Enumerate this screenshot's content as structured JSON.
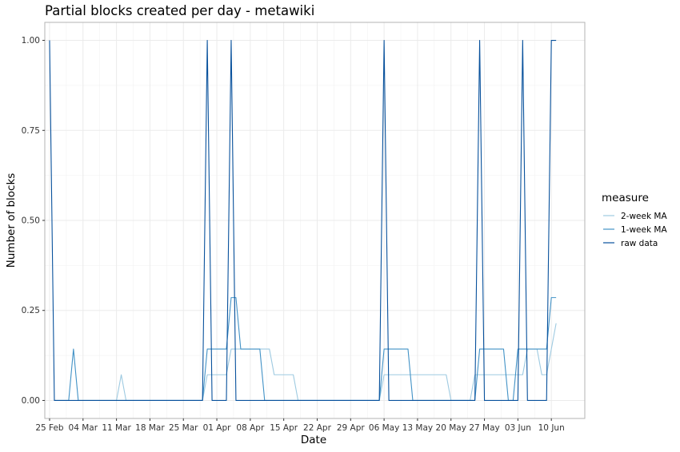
{
  "chart_data": {
    "type": "line",
    "title": "Partial blocks created per day - metawiki",
    "xlabel": "Date",
    "ylabel": "Number of blocks",
    "x_start": "2018-02-25",
    "xlim": [
      "2018-02-24",
      "2018-06-17"
    ],
    "ylim": [
      -0.05,
      1.05
    ],
    "x_ticks": [
      {
        "date": "2018-02-25",
        "label": "25 Feb"
      },
      {
        "date": "2018-03-04",
        "label": "04 Mar"
      },
      {
        "date": "2018-03-11",
        "label": "11 Mar"
      },
      {
        "date": "2018-03-18",
        "label": "18 Mar"
      },
      {
        "date": "2018-03-25",
        "label": "25 Mar"
      },
      {
        "date": "2018-04-01",
        "label": "01 Apr"
      },
      {
        "date": "2018-04-08",
        "label": "08 Apr"
      },
      {
        "date": "2018-04-15",
        "label": "15 Apr"
      },
      {
        "date": "2018-04-22",
        "label": "22 Apr"
      },
      {
        "date": "2018-04-29",
        "label": "29 Apr"
      },
      {
        "date": "2018-05-06",
        "label": "06 May"
      },
      {
        "date": "2018-05-13",
        "label": "13 May"
      },
      {
        "date": "2018-05-20",
        "label": "20 May"
      },
      {
        "date": "2018-05-27",
        "label": "27 May"
      },
      {
        "date": "2018-06-03",
        "label": "03 Jun"
      },
      {
        "date": "2018-06-10",
        "label": "10 Jun"
      }
    ],
    "y_ticks": [
      {
        "value": 0,
        "label": "0.00"
      },
      {
        "value": 0.25,
        "label": "0.25"
      },
      {
        "value": 0.5,
        "label": "0.50"
      },
      {
        "value": 0.75,
        "label": "0.75"
      },
      {
        "value": 1,
        "label": "1.00"
      }
    ],
    "grid": true,
    "legend": {
      "title": "measure",
      "position": "right"
    },
    "series": [
      {
        "name": "2-week MA",
        "color": "#9ecae1",
        "points": [
          [
            "2018-03-11",
            0
          ],
          [
            "2018-03-12",
            0.0714
          ],
          [
            "2018-03-13",
            0
          ],
          [
            "2018-03-29",
            0
          ],
          [
            "2018-03-30",
            0.0714
          ],
          [
            "2018-04-03",
            0.0714
          ],
          [
            "2018-04-04",
            0.1429
          ],
          [
            "2018-04-12",
            0.1429
          ],
          [
            "2018-04-13",
            0.0714
          ],
          [
            "2018-04-17",
            0.0714
          ],
          [
            "2018-04-18",
            0
          ],
          [
            "2018-05-05",
            0
          ],
          [
            "2018-05-06",
            0.0714
          ],
          [
            "2018-05-19",
            0.0714
          ],
          [
            "2018-05-20",
            0
          ],
          [
            "2018-05-24",
            0
          ],
          [
            "2018-05-25",
            0.0714
          ],
          [
            "2018-06-04",
            0.0714
          ],
          [
            "2018-06-05",
            0.1429
          ],
          [
            "2018-06-07",
            0.1429
          ],
          [
            "2018-06-08",
            0.0714
          ],
          [
            "2018-06-09",
            0.0714
          ],
          [
            "2018-06-11",
            0.2143
          ]
        ]
      },
      {
        "name": "1-week MA",
        "color": "#4292c6",
        "points": [
          [
            "2018-02-26",
            0
          ],
          [
            "2018-03-01",
            0
          ],
          [
            "2018-03-02",
            0.1429
          ],
          [
            "2018-03-03",
            0
          ],
          [
            "2018-03-29",
            0
          ],
          [
            "2018-03-30",
            0.1429
          ],
          [
            "2018-04-03",
            0.1429
          ],
          [
            "2018-04-04",
            0.2857
          ],
          [
            "2018-04-05",
            0.2857
          ],
          [
            "2018-04-06",
            0.1429
          ],
          [
            "2018-04-10",
            0.1429
          ],
          [
            "2018-04-11",
            0
          ],
          [
            "2018-05-05",
            0
          ],
          [
            "2018-05-06",
            0.1429
          ],
          [
            "2018-05-11",
            0.1429
          ],
          [
            "2018-05-12",
            0
          ],
          [
            "2018-05-25",
            0
          ],
          [
            "2018-05-26",
            0.1429
          ],
          [
            "2018-05-31",
            0.1429
          ],
          [
            "2018-06-01",
            0
          ],
          [
            "2018-06-02",
            0
          ],
          [
            "2018-06-03",
            0.1429
          ],
          [
            "2018-06-08",
            0.1429
          ],
          [
            "2018-06-09",
            0.1429
          ],
          [
            "2018-06-10",
            0.2857
          ],
          [
            "2018-06-11",
            0.2857
          ]
        ]
      },
      {
        "name": "raw data",
        "color": "#08519c",
        "points": [
          [
            "2018-02-25",
            1
          ],
          [
            "2018-02-26",
            0
          ],
          [
            "2018-03-29",
            0
          ],
          [
            "2018-03-30",
            1
          ],
          [
            "2018-03-31",
            0
          ],
          [
            "2018-04-03",
            0
          ],
          [
            "2018-04-04",
            1
          ],
          [
            "2018-04-05",
            0
          ],
          [
            "2018-05-05",
            0
          ],
          [
            "2018-05-06",
            1
          ],
          [
            "2018-05-07",
            0
          ],
          [
            "2018-05-25",
            0
          ],
          [
            "2018-05-26",
            1
          ],
          [
            "2018-05-27",
            0
          ],
          [
            "2018-06-03",
            0
          ],
          [
            "2018-06-04",
            1
          ],
          [
            "2018-06-05",
            0
          ],
          [
            "2018-06-09",
            0
          ],
          [
            "2018-06-10",
            1
          ],
          [
            "2018-06-11",
            1
          ]
        ]
      }
    ]
  }
}
